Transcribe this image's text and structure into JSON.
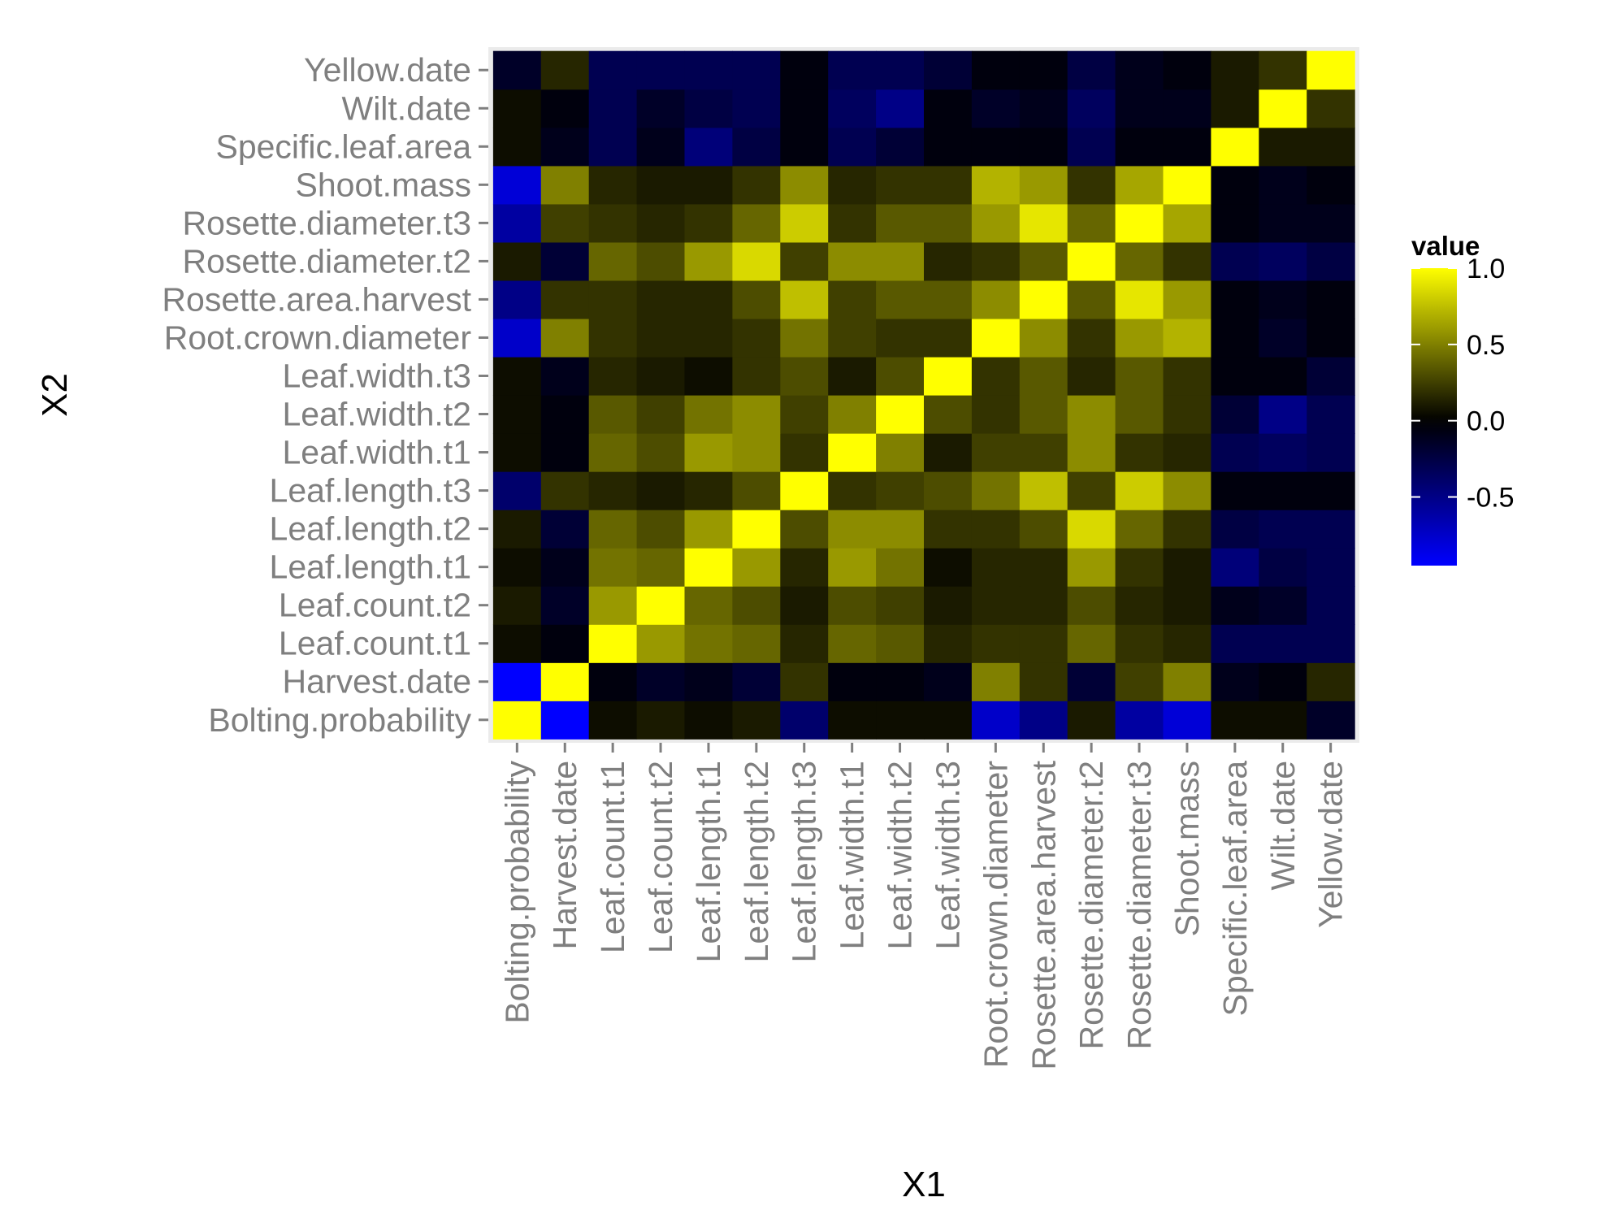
{
  "chart_data": {
    "type": "heatmap",
    "xlabel": "X1",
    "ylabel": "X2",
    "variables": [
      "Bolting.probability",
      "Harvest.date",
      "Leaf.count.t1",
      "Leaf.count.t2",
      "Leaf.length.t1",
      "Leaf.length.t2",
      "Leaf.length.t3",
      "Leaf.width.t1",
      "Leaf.width.t2",
      "Leaf.width.t3",
      "Root.crown.diameter",
      "Rosette.area.harvest",
      "Rosette.diameter.t2",
      "Rosette.diameter.t3",
      "Shoot.mass",
      "Specific.leaf.area",
      "Wilt.date",
      "Yellow.date"
    ],
    "matrix": [
      [
        1.0,
        -0.95,
        0.05,
        0.1,
        0.05,
        0.1,
        -0.4,
        0.05,
        0.05,
        0.05,
        -0.75,
        -0.5,
        0.1,
        -0.6,
        -0.8,
        0.05,
        0.05,
        -0.15
      ],
      [
        -0.95,
        1.0,
        -0.05,
        -0.15,
        -0.1,
        -0.2,
        0.2,
        -0.05,
        -0.05,
        -0.1,
        0.5,
        0.2,
        -0.2,
        0.25,
        0.5,
        -0.1,
        -0.05,
        0.15
      ],
      [
        0.05,
        -0.05,
        1.0,
        0.6,
        0.45,
        0.4,
        0.15,
        0.4,
        0.35,
        0.15,
        0.2,
        0.2,
        0.4,
        0.2,
        0.15,
        -0.3,
        -0.3,
        -0.3
      ],
      [
        0.1,
        -0.15,
        0.6,
        1.0,
        0.4,
        0.3,
        0.1,
        0.3,
        0.25,
        0.1,
        0.15,
        0.15,
        0.3,
        0.15,
        0.1,
        -0.1,
        -0.15,
        -0.3
      ],
      [
        0.05,
        -0.1,
        0.45,
        0.4,
        1.0,
        0.6,
        0.15,
        0.6,
        0.45,
        0.05,
        0.15,
        0.15,
        0.6,
        0.2,
        0.1,
        -0.45,
        -0.25,
        -0.3
      ],
      [
        0.1,
        -0.2,
        0.4,
        0.3,
        0.6,
        1.0,
        0.3,
        0.55,
        0.55,
        0.2,
        0.2,
        0.3,
        0.85,
        0.4,
        0.2,
        -0.25,
        -0.3,
        -0.3
      ],
      [
        -0.4,
        0.2,
        0.15,
        0.1,
        0.15,
        0.3,
        1.0,
        0.2,
        0.25,
        0.3,
        0.45,
        0.75,
        0.25,
        0.8,
        0.55,
        -0.05,
        -0.05,
        -0.05
      ],
      [
        0.05,
        -0.05,
        0.4,
        0.3,
        0.6,
        0.55,
        0.2,
        1.0,
        0.5,
        0.1,
        0.25,
        0.25,
        0.55,
        0.2,
        0.15,
        -0.3,
        -0.35,
        -0.3
      ],
      [
        0.05,
        -0.05,
        0.35,
        0.25,
        0.45,
        0.55,
        0.25,
        0.5,
        1.0,
        0.3,
        0.2,
        0.35,
        0.55,
        0.35,
        0.2,
        -0.2,
        -0.5,
        -0.3
      ],
      [
        0.05,
        -0.1,
        0.15,
        0.1,
        0.05,
        0.2,
        0.3,
        0.1,
        0.3,
        1.0,
        0.2,
        0.35,
        0.15,
        0.35,
        0.2,
        -0.05,
        -0.05,
        -0.2
      ],
      [
        -0.75,
        0.5,
        0.2,
        0.15,
        0.15,
        0.2,
        0.45,
        0.25,
        0.2,
        0.2,
        1.0,
        0.55,
        0.2,
        0.6,
        0.7,
        -0.05,
        -0.15,
        -0.05
      ],
      [
        -0.5,
        0.2,
        0.2,
        0.15,
        0.15,
        0.3,
        0.75,
        0.25,
        0.35,
        0.35,
        0.55,
        1.0,
        0.35,
        0.9,
        0.6,
        -0.05,
        -0.1,
        -0.05
      ],
      [
        0.1,
        -0.2,
        0.4,
        0.3,
        0.6,
        0.85,
        0.25,
        0.55,
        0.55,
        0.15,
        0.2,
        0.35,
        1.0,
        0.4,
        0.2,
        -0.3,
        -0.35,
        -0.25
      ],
      [
        -0.6,
        0.25,
        0.2,
        0.15,
        0.2,
        0.4,
        0.8,
        0.2,
        0.35,
        0.35,
        0.6,
        0.9,
        0.4,
        1.0,
        0.65,
        -0.05,
        -0.1,
        -0.1
      ],
      [
        -0.8,
        0.5,
        0.15,
        0.1,
        0.1,
        0.2,
        0.55,
        0.15,
        0.2,
        0.2,
        0.7,
        0.6,
        0.2,
        0.65,
        1.0,
        -0.05,
        -0.1,
        -0.05
      ],
      [
        0.05,
        -0.1,
        -0.3,
        -0.1,
        -0.45,
        -0.25,
        -0.05,
        -0.3,
        -0.2,
        -0.05,
        -0.05,
        -0.05,
        -0.3,
        -0.05,
        -0.05,
        1.0,
        0.1,
        0.1
      ],
      [
        0.05,
        -0.05,
        -0.3,
        -0.15,
        -0.25,
        -0.3,
        -0.05,
        -0.35,
        -0.5,
        -0.05,
        -0.15,
        -0.1,
        -0.35,
        -0.1,
        -0.1,
        0.1,
        1.0,
        0.2
      ],
      [
        -0.15,
        0.15,
        -0.3,
        -0.3,
        -0.3,
        -0.3,
        -0.05,
        -0.3,
        -0.3,
        -0.2,
        -0.05,
        -0.05,
        -0.25,
        -0.1,
        -0.05,
        0.1,
        0.2,
        1.0
      ]
    ],
    "color_scale": {
      "low": "#0000ff",
      "mid": "#000000",
      "high": "#ffff00",
      "min": -0.95,
      "mid_value": 0.0,
      "max": 1.0
    },
    "legend": {
      "title": "value",
      "ticks": [
        "1.0",
        "0.5",
        "0.0",
        "-0.5"
      ],
      "tick_values": [
        1.0,
        0.5,
        0.0,
        -0.5
      ],
      "position": "right"
    },
    "grid": true,
    "panel_background": "#ebebeb"
  }
}
